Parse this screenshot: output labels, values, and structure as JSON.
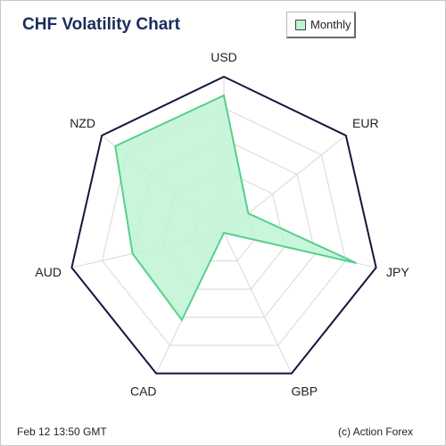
{
  "chart_data": {
    "type": "radar",
    "title": "CHF Volatility Chart",
    "categories": [
      "USD",
      "EUR",
      "JPY",
      "GBP",
      "CAD",
      "AUD",
      "NZD"
    ],
    "series": [
      {
        "name": "Monthly",
        "values": [
          0.88,
          0.2,
          0.87,
          0.0,
          0.62,
          0.6,
          0.89
        ],
        "color": "#56cf8d",
        "fill": "#bff5d3"
      }
    ],
    "rmax": 1.0,
    "gridlines": 5
  },
  "legend": {
    "label": "Monthly"
  },
  "footer": {
    "timestamp": "Feb 12  13:50 GMT",
    "credit": "(c) Action Forex"
  },
  "colors": {
    "outline": "#14163c",
    "grid": "#d8d8d8",
    "title": "#1c2d5c"
  }
}
